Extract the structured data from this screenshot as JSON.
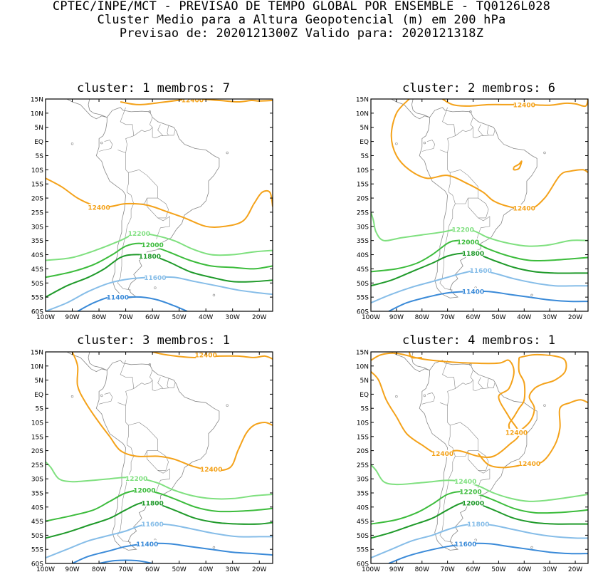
{
  "header": {
    "line1": "CPTEC/INPE/MCT - PREVISAO DE TEMPO GLOBAL POR ENSEMBLE - TQ0126L028",
    "line2": "Cluster Medio para a Altura Geopotencial (m) em 200 hPa",
    "line3": "Previsao de: 2020121300Z   Valido para: 2020121318Z"
  },
  "axes": {
    "lat_labels": [
      "15N",
      "10N",
      "5N",
      "EQ",
      "5S",
      "10S",
      "15S",
      "20S",
      "25S",
      "30S",
      "35S",
      "40S",
      "45S",
      "50S",
      "55S",
      "60S"
    ],
    "lon_labels": [
      "100W",
      "90W",
      "80W",
      "70W",
      "60W",
      "50W",
      "40W",
      "30W",
      "20W"
    ]
  },
  "colors": {
    "c12400": "#f4a21a",
    "c12200": "#7fe07f",
    "c12000": "#3cbc3c",
    "c11800": "#1f9a2a",
    "c11600": "#86bde8",
    "c11400": "#3a8ad8",
    "land": "#888888"
  },
  "panels": [
    {
      "title": "cluster: 1  membros: 7",
      "labels": [
        "12400",
        "12400",
        "12200",
        "12000",
        "11800",
        "11600",
        "11400"
      ]
    },
    {
      "title": "cluster: 2  membros: 6",
      "labels": [
        "12400",
        "12400",
        "12200",
        "12000",
        "11800",
        "11600",
        "11400"
      ]
    },
    {
      "title": "cluster: 3  membros: 1",
      "labels": [
        "12400",
        "12400",
        "12200",
        "12000",
        "11800",
        "11600",
        "11400"
      ]
    },
    {
      "title": "cluster: 4  membros: 1",
      "labels": [
        "12400",
        "12400",
        "12400",
        "12400",
        "12200",
        "12000",
        "11800",
        "11600",
        "11400"
      ]
    }
  ]
}
